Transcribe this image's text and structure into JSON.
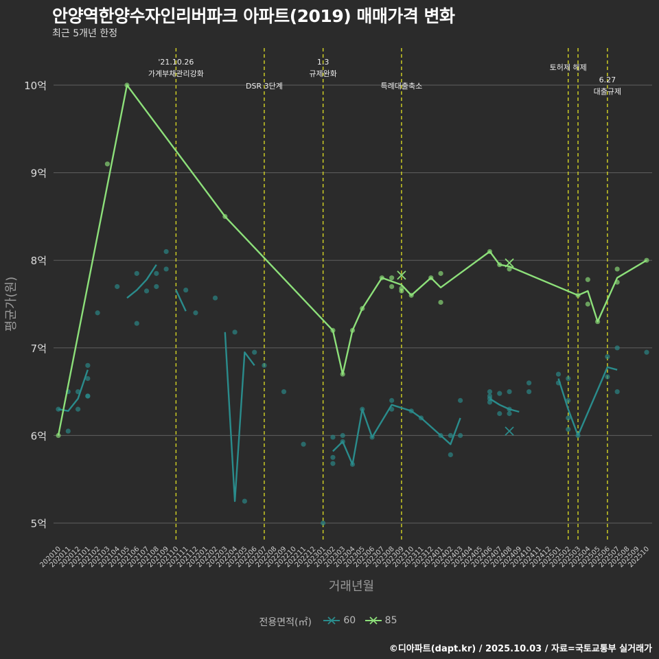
{
  "title": "안양역한양수자인리버파크 아파트(2019) 매매가격 변화",
  "subtitle": "최근 5개년 한정",
  "caption": "©디아파트(dapt.kr) / 2025.10.03 / 자료=국토교통부 실거래가",
  "colors": {
    "background": "#2b2b2b",
    "grid": "#606060",
    "vline": "#d6d624",
    "s60": "#2a8c8c",
    "s85": "#8de07a"
  },
  "chart_data": {
    "type": "line",
    "xlabel": "거래년월",
    "ylabel": "평균가(원)",
    "ylim": [
      4.8,
      10.4
    ],
    "grid": true,
    "legend_position": "bottom",
    "legend_title": "전용면적(㎡)",
    "categories": [
      "202010",
      "202011",
      "202012",
      "202101",
      "202102",
      "202103",
      "202104",
      "202105",
      "202106",
      "202107",
      "202108",
      "202109",
      "202110",
      "202111",
      "202112",
      "202201",
      "202202",
      "202203",
      "202204",
      "202205",
      "202206",
      "202207",
      "202208",
      "202209",
      "202210",
      "202211",
      "202212",
      "202301",
      "202302",
      "202303",
      "202304",
      "202305",
      "202306",
      "202307",
      "202308",
      "202309",
      "202310",
      "202311",
      "202312",
      "202401",
      "202402",
      "202403",
      "202404",
      "202405",
      "202406",
      "202407",
      "202408",
      "202409",
      "202410",
      "202411",
      "202412",
      "202501",
      "202502",
      "202503",
      "202504",
      "202505",
      "202506",
      "202507",
      "202508",
      "202509",
      "202510"
    ],
    "y_ticks": [
      {
        "value": 5,
        "label": "5억"
      },
      {
        "value": 6,
        "label": "6억"
      },
      {
        "value": 7,
        "label": "7억"
      },
      {
        "value": 8,
        "label": "8억"
      },
      {
        "value": 9,
        "label": "9억"
      },
      {
        "value": 10,
        "label": "10억"
      }
    ],
    "series": [
      {
        "name": "60",
        "color": "#2a8c8c",
        "line": [
          [
            "202010",
            6.3
          ],
          [
            "202011",
            6.28
          ],
          [
            "202012",
            6.42
          ],
          [
            "202101",
            6.75
          ],
          null,
          [
            "202105",
            7.57
          ],
          [
            "202106",
            7.66
          ],
          [
            "202107",
            7.78
          ],
          [
            "202108",
            7.95
          ],
          null,
          [
            "202110",
            7.66
          ],
          [
            "202111",
            7.42
          ],
          null,
          [
            "202203",
            7.18
          ],
          [
            "202204",
            5.25
          ],
          [
            "202205",
            6.95
          ],
          [
            "202206",
            6.8
          ],
          null,
          [
            "202302",
            5.82
          ],
          [
            "202303",
            5.93
          ],
          [
            "202304",
            5.67
          ],
          [
            "202305",
            6.3
          ],
          [
            "202306",
            5.98
          ],
          [
            "202308",
            6.35
          ],
          [
            "202310",
            6.28
          ],
          [
            "202311",
            6.2
          ],
          [
            "202401",
            6.0
          ],
          [
            "202402",
            5.9
          ],
          [
            "202403",
            6.2
          ],
          null,
          [
            "202406",
            6.42
          ],
          [
            "202407",
            6.35
          ],
          [
            "202408",
            6.3
          ],
          [
            "202409",
            6.27
          ],
          null,
          [
            "202501",
            6.65
          ],
          [
            "202502",
            6.3
          ],
          [
            "202503",
            6.0
          ],
          [
            "202506",
            6.78
          ],
          [
            "202507",
            6.75
          ]
        ],
        "points": [
          [
            "202010",
            6.3
          ],
          [
            "202011",
            6.05
          ],
          [
            "202011",
            6.5
          ],
          [
            "202012",
            6.3
          ],
          [
            "202012",
            6.5
          ],
          [
            "202101",
            6.8
          ],
          [
            "202101",
            6.65
          ],
          [
            "202101",
            6.45
          ],
          [
            "202101",
            6.45
          ],
          [
            "202102",
            7.4
          ],
          [
            "202104",
            7.7
          ],
          [
            "202106",
            7.85
          ],
          [
            "202106",
            7.28
          ],
          [
            "202107",
            7.65
          ],
          [
            "202108",
            7.85
          ],
          [
            "202108",
            7.7
          ],
          [
            "202109",
            8.1
          ],
          [
            "202109",
            7.9
          ],
          [
            "202111",
            7.66
          ],
          [
            "202112",
            7.4
          ],
          [
            "202202",
            7.57
          ],
          [
            "202204",
            7.18
          ],
          [
            "202205",
            5.25
          ],
          [
            "202206",
            6.95
          ],
          [
            "202207",
            6.8
          ],
          [
            "202209",
            6.5
          ],
          [
            "202211",
            5.9
          ],
          [
            "202301",
            5.0
          ],
          [
            "202302",
            5.98
          ],
          [
            "202302",
            5.75
          ],
          [
            "202302",
            5.68
          ],
          [
            "202303",
            5.93
          ],
          [
            "202303",
            6.0
          ],
          [
            "202304",
            5.67
          ],
          [
            "202305",
            6.3
          ],
          [
            "202306",
            5.98
          ],
          [
            "202308",
            6.4
          ],
          [
            "202308",
            6.3
          ],
          [
            "202310",
            6.28
          ],
          [
            "202311",
            6.2
          ],
          [
            "202401",
            6.0
          ],
          [
            "202402",
            6.0
          ],
          [
            "202402",
            5.78
          ],
          [
            "202403",
            6.4
          ],
          [
            "202403",
            6.0
          ],
          [
            "202406",
            6.5
          ],
          [
            "202406",
            6.45
          ],
          [
            "202406",
            6.42
          ],
          [
            "202406",
            6.38
          ],
          [
            "202407",
            6.48
          ],
          [
            "202407",
            6.25
          ],
          [
            "202408",
            6.3
          ],
          [
            "202408",
            6.25
          ],
          [
            "202408",
            6.5
          ],
          [
            "202410",
            6.6
          ],
          [
            "202410",
            6.5
          ],
          [
            "202501",
            6.7
          ],
          [
            "202501",
            6.6
          ],
          [
            "202502",
            6.65
          ],
          [
            "202502",
            6.4
          ],
          [
            "202502",
            6.2
          ],
          [
            "202502",
            6.07
          ],
          [
            "202503",
            6.0
          ],
          [
            "202506",
            6.9
          ],
          [
            "202506",
            6.67
          ],
          [
            "202507",
            7.0
          ],
          [
            "202507",
            6.5
          ],
          [
            "202510",
            6.95
          ]
        ],
        "x_markers": [
          [
            "202408",
            6.05
          ]
        ]
      },
      {
        "name": "85",
        "color": "#8de07a",
        "line": [
          [
            "202010",
            6.0
          ],
          [
            "202105",
            10.0
          ],
          [
            "202203",
            8.5
          ],
          [
            "202302",
            7.2
          ],
          [
            "202303",
            6.7
          ],
          [
            "202304",
            7.2
          ],
          [
            "202305",
            7.45
          ],
          [
            "202307",
            7.8
          ],
          [
            "202309",
            7.72
          ],
          [
            "202310",
            7.6
          ],
          [
            "202312",
            7.8
          ],
          [
            "202401",
            7.69
          ],
          [
            "202406",
            8.1
          ],
          [
            "202407",
            7.95
          ],
          [
            "202408",
            7.93
          ],
          [
            "202503",
            7.6
          ],
          [
            "202504",
            7.65
          ],
          [
            "202505",
            7.3
          ],
          [
            "202507",
            7.8
          ],
          [
            "202510",
            8.0
          ]
        ],
        "points": [
          [
            "202010",
            6.0
          ],
          [
            "202103",
            9.1
          ],
          [
            "202105",
            10.0
          ],
          [
            "202203",
            8.5
          ],
          [
            "202302",
            7.2
          ],
          [
            "202303",
            6.7
          ],
          [
            "202304",
            7.2
          ],
          [
            "202305",
            7.45
          ],
          [
            "202307",
            7.8
          ],
          [
            "202308",
            7.7
          ],
          [
            "202308",
            7.8
          ],
          [
            "202309",
            7.65
          ],
          [
            "202309",
            7.68
          ],
          [
            "202310",
            7.6
          ],
          [
            "202312",
            7.8
          ],
          [
            "202401",
            7.52
          ],
          [
            "202401",
            7.85
          ],
          [
            "202406",
            8.1
          ],
          [
            "202407",
            7.95
          ],
          [
            "202408",
            7.9
          ],
          [
            "202503",
            7.6
          ],
          [
            "202504",
            7.5
          ],
          [
            "202504",
            7.78
          ],
          [
            "202505",
            7.3
          ],
          [
            "202507",
            7.9
          ],
          [
            "202507",
            7.75
          ],
          [
            "202510",
            8.0
          ]
        ],
        "x_markers": [
          [
            "202309",
            7.83
          ],
          [
            "202408",
            7.97
          ]
        ]
      }
    ],
    "vlines": [
      {
        "x": "202110",
        "lines": [
          "'21.10.26",
          "가계부채관리강화"
        ],
        "label_y": "high"
      },
      {
        "x": "202207",
        "lines": [
          "DSR 3단계"
        ],
        "label_y": "low"
      },
      {
        "x": "202301",
        "lines": [
          "1.3",
          "규제완화"
        ],
        "label_y": "high"
      },
      {
        "x": "202309",
        "lines": [
          "특례대출축소"
        ],
        "label_y": "low"
      },
      {
        "x": "202502",
        "lines": [
          "토허제 해제"
        ],
        "label_y": "mid"
      },
      {
        "x": "202503",
        "lines": [],
        "label_y": "none"
      },
      {
        "x": "202506",
        "lines": [
          "6.27",
          "대출규제"
        ],
        "label_y": "lower"
      }
    ]
  }
}
